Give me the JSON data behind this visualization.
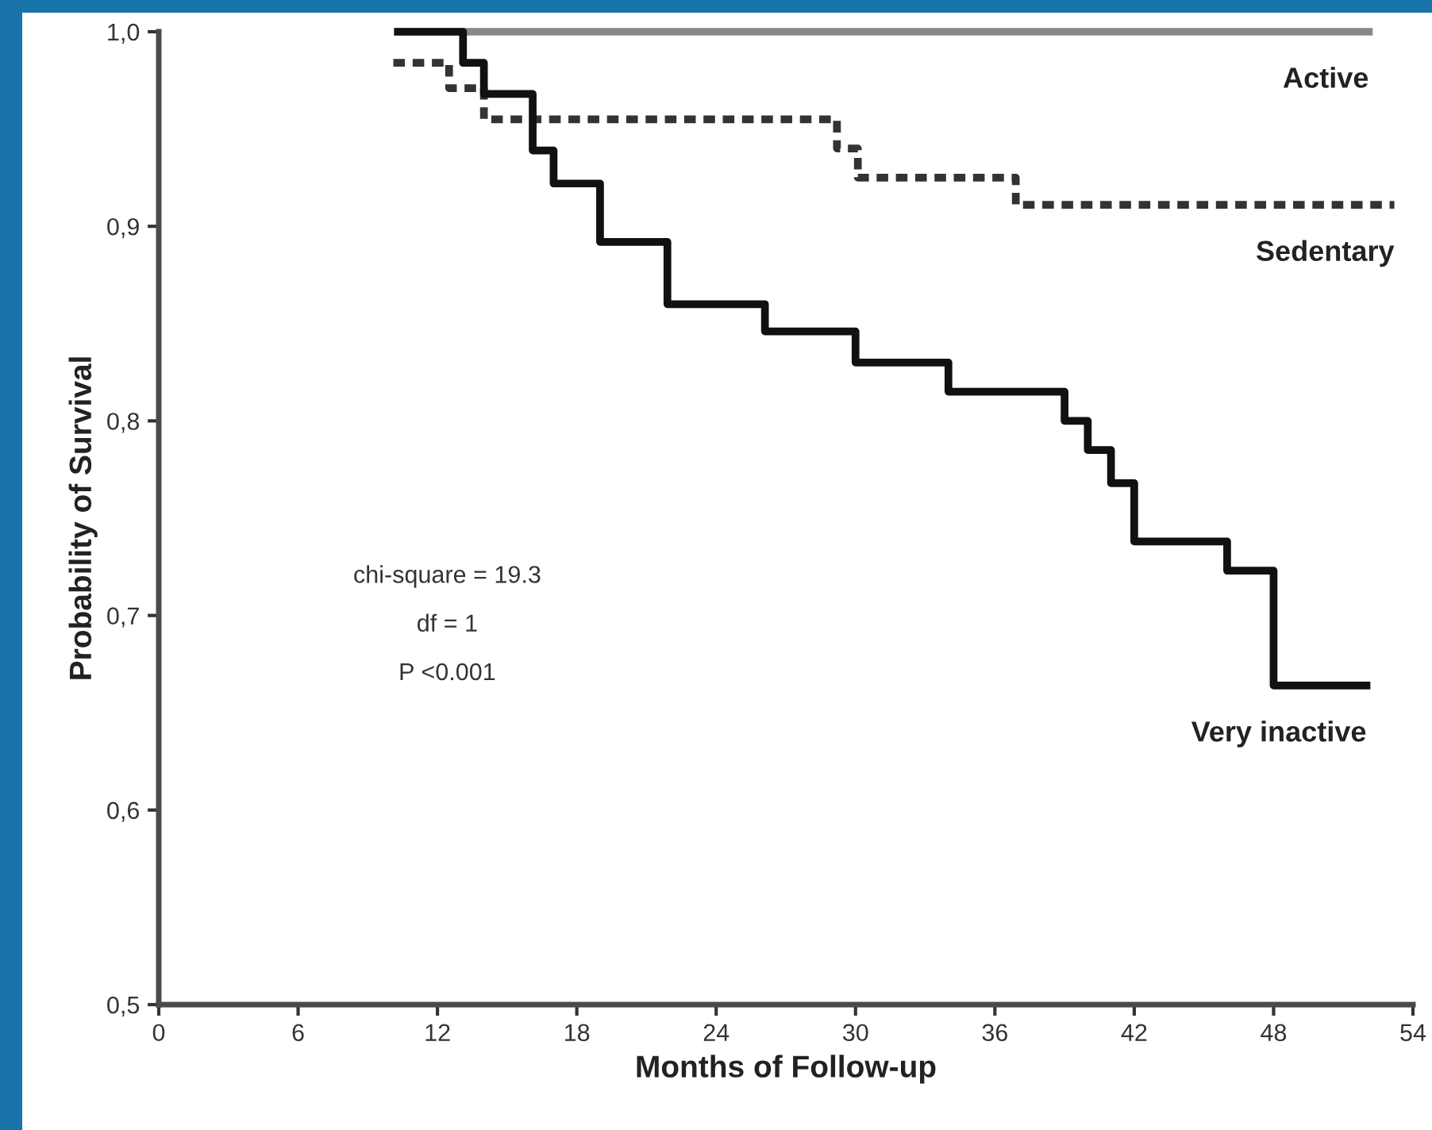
{
  "chart_data": {
    "type": "step",
    "xlabel": "Months of Follow-up",
    "ylabel": "Probability of Survival",
    "xlim": [
      0,
      54
    ],
    "xticks": [
      0,
      6,
      12,
      18,
      24,
      30,
      36,
      42,
      48,
      54
    ],
    "ylim": [
      0.5,
      1.0
    ],
    "yticks": [
      {
        "value": 0.5,
        "label": "0,5"
      },
      {
        "value": 0.6,
        "label": "0,6"
      },
      {
        "value": 0.7,
        "label": "0,7"
      },
      {
        "value": 0.8,
        "label": "0,8"
      },
      {
        "value": 0.9,
        "label": "0,9"
      },
      {
        "value": 1.0,
        "label": "1,0"
      }
    ],
    "grid": false,
    "legend": false,
    "series": [
      {
        "name": "Active",
        "color": "#888888",
        "line_style": "solid",
        "x": [
          10.3,
          52.1
        ],
        "values": [
          1.0,
          1.0
        ]
      },
      {
        "name": "Sedentary",
        "color": "#333333",
        "line_style": "dashed",
        "x": [
          10.1,
          12.5,
          14.0,
          29.2,
          30.1,
          36.9,
          53.2
        ],
        "values": [
          0.984,
          0.971,
          0.955,
          0.94,
          0.925,
          0.911,
          0.911
        ]
      },
      {
        "name": "Very inactive",
        "color": "#111111",
        "line_style": "solid",
        "x": [
          10.3,
          13.1,
          14.0,
          16.1,
          17.0,
          19.0,
          21.9,
          26.1,
          30.0,
          34.0,
          39.0,
          40.0,
          41.0,
          42.0,
          46.0,
          48.0,
          52.0
        ],
        "values": [
          1.0,
          0.984,
          0.968,
          0.939,
          0.922,
          0.892,
          0.86,
          0.846,
          0.83,
          0.815,
          0.8,
          0.785,
          0.768,
          0.738,
          0.723,
          0.664,
          0.664
        ]
      }
    ],
    "annotations": [
      "chi-square = 19.3",
      "df = 1",
      "P <0.001"
    ]
  }
}
